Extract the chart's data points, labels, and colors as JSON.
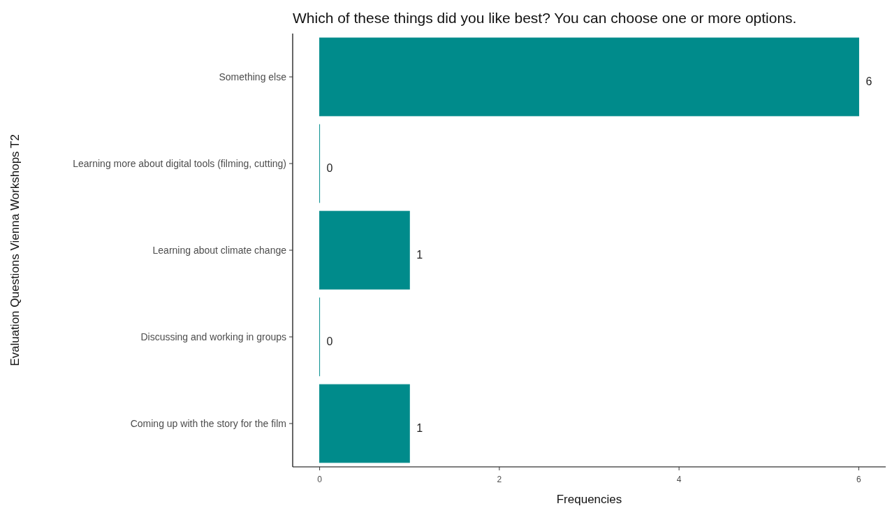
{
  "chart_data": {
    "type": "bar",
    "orientation": "horizontal",
    "title": "Which of these things did you like best? You can choose one or more options.",
    "xlabel": "Frequencies",
    "ylabel": "Evaluation Questions Vienna Workshops T2",
    "categories": [
      "Something else",
      "Learning more about digital tools (filming, cutting)",
      "Learning about climate change",
      "Discussing and working in groups",
      "Coming up with the story for the film"
    ],
    "values": [
      6,
      0,
      1,
      0,
      1
    ],
    "color": "#008b8b",
    "xlim": [
      -0.3,
      6.3
    ],
    "xticks": [
      0,
      2,
      4,
      6
    ],
    "grid": false,
    "data_labels": true
  }
}
